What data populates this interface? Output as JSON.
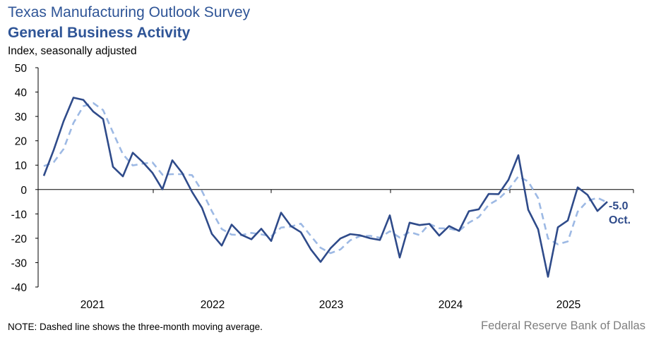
{
  "header": {
    "title": "Texas Manufacturing Outlook Survey",
    "subtitle": "General Business Activity",
    "ylabel": "Index, seasonally adjusted"
  },
  "footer": {
    "note": "NOTE: Dashed line shows the three-month  moving average.",
    "source": "Federal Reserve Bank of Dallas"
  },
  "chart_data": {
    "type": "line",
    "ylim": [
      -40,
      50
    ],
    "yticks": [
      -40,
      -30,
      -20,
      -10,
      0,
      10,
      20,
      30,
      40,
      50
    ],
    "xlabels": [
      "2021",
      "2022",
      "2023",
      "2024",
      "2025"
    ],
    "x_start": "2020-08",
    "colors": {
      "actual": "#2f4b8a",
      "moving_average": "#9db9e4"
    },
    "series": [
      {
        "values": [
          5.6,
          16.2,
          28.0,
          37.7,
          36.8,
          32.0,
          28.9,
          9.3,
          5.4,
          15.1,
          11.3,
          6.8,
          0.1,
          12.0,
          6.8,
          -1.0,
          -7.5,
          -18.2,
          -23.0,
          -14.4,
          -18.6,
          -20.4,
          -16.1,
          -21.1,
          -9.5,
          -15.0,
          -17.5,
          -24.5,
          -29.7,
          -24.1,
          -20.1,
          -18.3,
          -18.8,
          -20.0,
          -20.7,
          -10.6,
          -27.9,
          -13.6,
          -14.6,
          -14.1,
          -18.9,
          -15.0,
          -17.0,
          -8.9,
          -8.1,
          -1.8,
          -1.9,
          4.0,
          14.1,
          -8.3,
          -16.3,
          -35.8,
          -15.5,
          -12.7,
          0.9,
          -2.2,
          -8.8,
          -5.0
        ]
      },
      {
        "values": [
          9.6,
          11.2,
          16.6,
          27.3,
          34.2,
          35.5,
          32.6,
          23.4,
          14.5,
          9.9,
          10.6,
          11.1,
          6.1,
          6.3,
          6.3,
          5.9,
          -0.6,
          -8.9,
          -16.2,
          -18.5,
          -18.7,
          -17.8,
          -18.4,
          -19.2,
          -15.6,
          -15.2,
          -14.0,
          -19.0,
          -23.9,
          -26.1,
          -24.6,
          -20.8,
          -19.1,
          -19.0,
          -19.8,
          -17.1,
          -19.7,
          -17.4,
          -18.7,
          -14.1,
          -15.9,
          -16.0,
          -17.0,
          -13.6,
          -11.3,
          -6.3,
          -3.9,
          -0.0,
          5.4,
          3.3,
          -3.5,
          -20.1,
          -22.5,
          -21.3,
          -9.1,
          -4.7,
          -3.4,
          -5.3
        ]
      }
    ],
    "annotation": {
      "value": "-5.0",
      "label": "Oct."
    }
  }
}
